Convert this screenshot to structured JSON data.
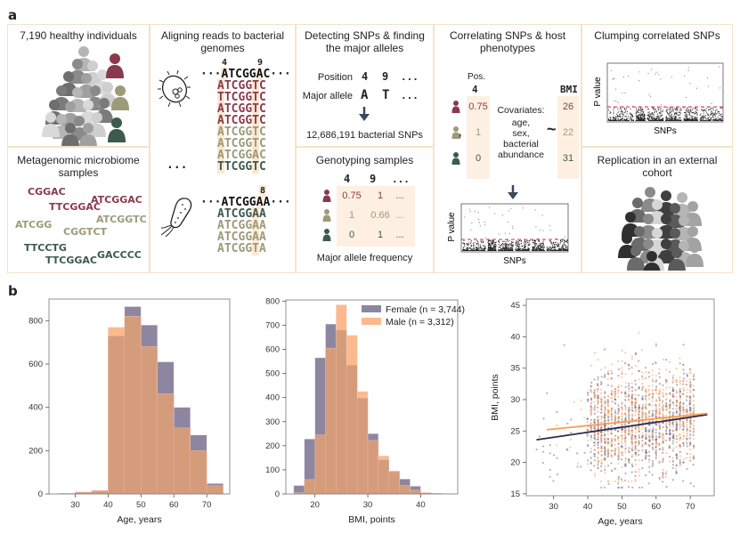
{
  "panel_a": {
    "label": "a",
    "cohort": {
      "title": "7,190 healthy individuals"
    },
    "samples": {
      "title": "Metagenomic microbiome samples",
      "reads": [
        {
          "text": "CGGAC",
          "color": "maroon"
        },
        {
          "text": "ATCGGAC",
          "color": "maroon"
        },
        {
          "text": "TTCGGAC",
          "color": "maroon"
        },
        {
          "text": "ATCGGTC",
          "color": "olive"
        },
        {
          "text": "ATCGG",
          "color": "olive"
        },
        {
          "text": "CGGTCT",
          "color": "olive"
        },
        {
          "text": "TTCCTG",
          "color": "dgreen"
        },
        {
          "text": "GACCCC",
          "color": "dgreen"
        },
        {
          "text": "TTCGGAC",
          "color": "dgreen"
        }
      ]
    },
    "aligning": {
      "title": "Aligning reads to bacterial genomes",
      "genome1": {
        "positions": [
          "4",
          "9"
        ],
        "reference": "ATCGGAC",
        "reads": [
          {
            "text": "ATCGGTC",
            "color": "maroon"
          },
          {
            "text": "TTCGGTC",
            "color": "maroon"
          },
          {
            "text": "ATCGGTC",
            "color": "maroon"
          },
          {
            "text": "ATCGGTC",
            "color": "maroon"
          },
          {
            "text": "ATCGGTC",
            "color": "olive"
          },
          {
            "text": "ATCGGTC",
            "color": "olive"
          },
          {
            "text": "ATCGGAC",
            "color": "olive"
          },
          {
            "text": "TTCGGTC",
            "color": "dgreen"
          }
        ]
      },
      "ellipsis": "...",
      "genome2": {
        "positions": [
          "8"
        ],
        "reference": "ATCGGAA",
        "reads": [
          {
            "text": "ATCGGAA",
            "color": "dgreen"
          },
          {
            "text": "ATCGGAA",
            "color": "olive"
          },
          {
            "text": "ATCGGAA",
            "color": "olive"
          },
          {
            "text": "ATCGGTA",
            "color": "olive"
          }
        ]
      }
    },
    "detecting": {
      "title": "Detecting SNPs & finding the major alleles",
      "position_label": "Position",
      "positions": [
        "4",
        "9",
        "..."
      ],
      "major_allele_label": "Major allele",
      "alleles": [
        "A",
        "T",
        "..."
      ],
      "result": "12,686,191 bacterial SNPs"
    },
    "genotyping": {
      "title": "Genotyping samples",
      "columns": [
        "4",
        "9",
        "..."
      ],
      "rows": [
        {
          "color": "maroon",
          "values": [
            "0.75",
            "1",
            "..."
          ]
        },
        {
          "color": "olive",
          "values": [
            "1",
            "0.66",
            "..."
          ]
        },
        {
          "color": "dgreen",
          "values": [
            "0",
            "1",
            "..."
          ]
        }
      ],
      "caption": "Major allele frequency"
    },
    "correlating": {
      "title": "Correlating SNPs & host phenotypes",
      "pos_label": "Pos.",
      "pos_value": "4",
      "snp_values": [
        "0.75",
        "1",
        "0"
      ],
      "covariates": [
        "Covariates:",
        "age,",
        "sex,",
        "bacterial",
        "abundance"
      ],
      "tilde": "~",
      "phenotype_label": "BMI",
      "bmi_values": [
        "26",
        "22",
        "31"
      ],
      "manhattan": {
        "ylabel": "P value",
        "xlabel": "SNPs"
      }
    },
    "clumping": {
      "title": "Clumping correlated SNPs",
      "manhattan": {
        "ylabel": "P value",
        "xlabel": "SNPs"
      }
    },
    "replication": {
      "title": "Replication in an external cohort"
    },
    "colors": {
      "maroon": "#8a3a4d",
      "olive": "#9c9a78",
      "dgreen": "#3c5a4e",
      "highlight": "#fbe8d2",
      "border": "#f5e3c8"
    }
  },
  "panel_b": {
    "label": "b"
  },
  "chart_data": [
    {
      "type": "bar",
      "subtype": "overlaid histogram",
      "xlabel": "Age, years",
      "ylabel": "",
      "bin_edges": [
        25,
        30,
        35,
        40,
        45,
        50,
        55,
        60,
        65,
        70,
        75
      ],
      "xticks": [
        30,
        40,
        50,
        60,
        70
      ],
      "yticks": [
        0,
        200,
        400,
        600,
        800
      ],
      "xlim": [
        22,
        77
      ],
      "ylim": [
        0,
        900
      ],
      "series": [
        {
          "name": "Female",
          "color": "#8e86a0",
          "values": [
            3,
            8,
            14,
            730,
            865,
            780,
            610,
            400,
            272,
            48
          ]
        },
        {
          "name": "Male",
          "color": "#fdb98c",
          "values": [
            2,
            10,
            18,
            770,
            820,
            680,
            462,
            305,
            200,
            38
          ]
        }
      ],
      "overlap_color": "#d59c7c"
    },
    {
      "type": "bar",
      "subtype": "overlaid histogram",
      "xlabel": "BMI, points",
      "ylabel": "",
      "bin_edges": [
        16,
        18,
        20,
        22,
        24,
        26,
        28,
        30,
        32,
        34,
        36,
        38,
        40,
        42,
        44,
        46
      ],
      "xticks": [
        20,
        30,
        40
      ],
      "yticks": [
        0,
        100,
        200,
        300,
        400,
        500,
        600,
        700,
        800
      ],
      "xlim": [
        14.5,
        47
      ],
      "ylim": [
        0,
        805
      ],
      "legend": {
        "position": "top-right",
        "entries": [
          "Female (n = 3,744)",
          "Male (n = 3,312)"
        ]
      },
      "series": [
        {
          "name": "Female (n = 3,744)",
          "color": "#8e86a0",
          "values": [
            35,
            228,
            565,
            705,
            680,
            535,
            398,
            250,
            142,
            95,
            62,
            32,
            5,
            2,
            1
          ]
        },
        {
          "name": "Male (n = 3,312)",
          "color": "#fdb98c",
          "values": [
            5,
            60,
            245,
            605,
            785,
            658,
            425,
            222,
            158,
            92,
            35,
            15,
            5,
            3,
            1
          ]
        }
      ],
      "overlap_color": "#d59c7c"
    },
    {
      "type": "scatter",
      "xlabel": "Age, years",
      "ylabel": "BMI, points",
      "xticks": [
        30,
        40,
        50,
        60,
        70
      ],
      "yticks": [
        15,
        20,
        25,
        30,
        35,
        40,
        45
      ],
      "xlim": [
        22,
        77
      ],
      "ylim": [
        14.7,
        46
      ],
      "series": [
        {
          "name": "Female",
          "color": "#5a5470",
          "point_count_shown": 3744,
          "x_range": [
            25,
            75
          ],
          "y_range": [
            16,
            45
          ]
        },
        {
          "name": "Male",
          "color": "#fd9a50",
          "point_count_shown": 3312,
          "x_range": [
            28,
            75
          ],
          "y_range": [
            17,
            44
          ]
        }
      ],
      "regression_lines": [
        {
          "name": "Female",
          "color": "#2e2a45",
          "x": [
            25,
            75
          ],
          "y": [
            23.6,
            27.6
          ]
        },
        {
          "name": "Male",
          "color": "#fd9a50",
          "x": [
            28,
            75
          ],
          "y": [
            25.2,
            27.8
          ]
        }
      ]
    }
  ]
}
